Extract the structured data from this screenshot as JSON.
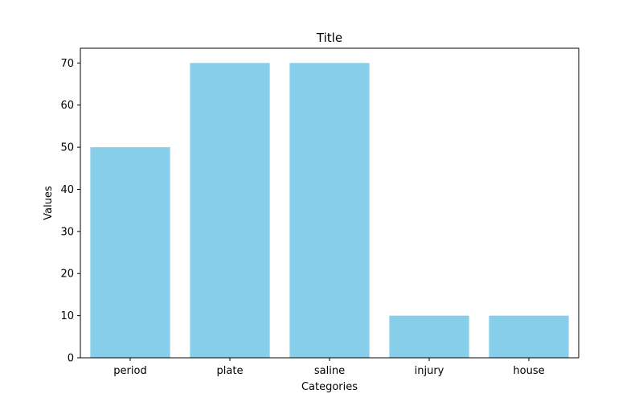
{
  "chart_data": {
    "type": "bar",
    "title": "Title",
    "xlabel": "Categories",
    "ylabel": "Values",
    "categories": [
      "period",
      "plate",
      "saline",
      "injury",
      "house"
    ],
    "values": [
      50,
      70,
      70,
      10,
      10
    ],
    "ylim": [
      0,
      73.5
    ],
    "yticks": [
      0,
      10,
      20,
      30,
      40,
      50,
      60,
      70
    ],
    "grid": false,
    "bar_color": "#87CEEB",
    "axis_color": "#000000"
  }
}
